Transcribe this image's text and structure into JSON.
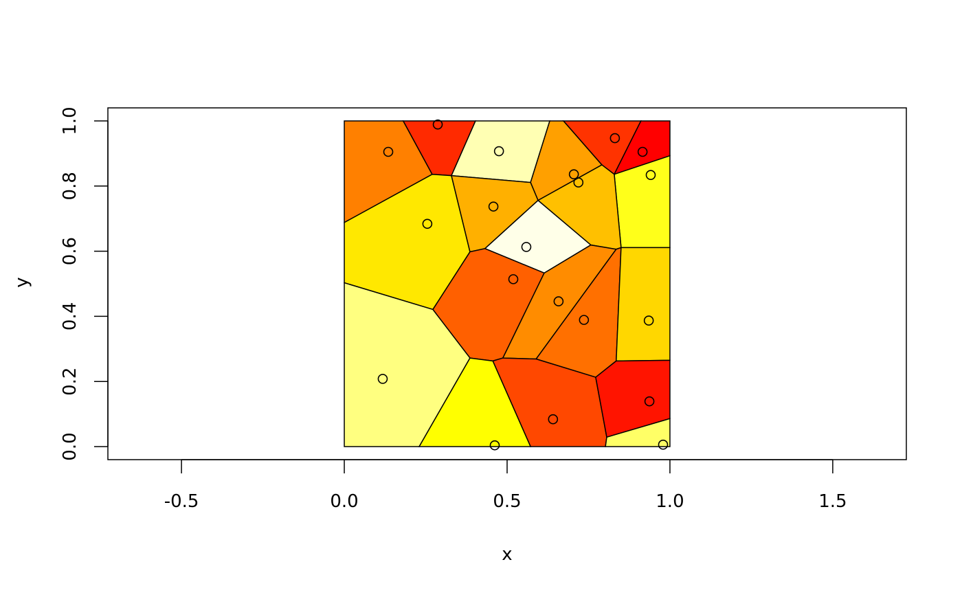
{
  "chart_data": {
    "type": "voronoi",
    "x_label": "x",
    "y_label": "y",
    "xlim": [
      -0.726,
      1.726
    ],
    "ylim": [
      -0.04,
      1.04
    ],
    "xticks": [
      -0.5,
      {
        "value": 0,
        "label": "0.0"
      },
      0.5,
      {
        "value": 1,
        "label": "1.0"
      },
      1.5
    ],
    "yticks": [
      {
        "value": 0,
        "label": "0.0"
      },
      0.2,
      0.4,
      0.6,
      0.8,
      {
        "value": 1,
        "label": "1.0"
      }
    ],
    "points": {
      "x": [
        0.135,
        0.287,
        0.475,
        0.831,
        0.916,
        0.941,
        0.705,
        0.719,
        0.255,
        0.458,
        0.559,
        0.519,
        0.658,
        0.736,
        0.935,
        0.118,
        0.641,
        0.937,
        0.462,
        0.979
      ],
      "y": [
        0.905,
        0.989,
        0.907,
        0.947,
        0.905,
        0.834,
        0.836,
        0.811,
        0.684,
        0.737,
        0.613,
        0.514,
        0.446,
        0.389,
        0.387,
        0.208,
        0.084,
        0.139,
        0.004,
        0.006
      ]
    },
    "cells": [
      {
        "color": "#FF8000",
        "x": [
          0,
          0.181,
          0.27,
          0
        ],
        "y": [
          1,
          1,
          0.836,
          0.688
        ]
      },
      {
        "color": "#FF2A00",
        "x": [
          0.181,
          0.403,
          0.329,
          0.27
        ],
        "y": [
          1,
          1,
          0.832,
          0.836
        ]
      },
      {
        "color": "#FFFFB3",
        "x": [
          0.403,
          0.631,
          0.572,
          0.329
        ],
        "y": [
          1,
          1,
          0.811,
          0.832
        ]
      },
      {
        "color": "#FF3300",
        "x": [
          0.673,
          0.911,
          0.829,
          0.791
        ],
        "y": [
          1,
          1,
          0.836,
          0.865
        ]
      },
      {
        "color": "#FF0000",
        "x": [
          0.911,
          1,
          1,
          0.829
        ],
        "y": [
          1,
          1,
          0.893,
          0.836
        ]
      },
      {
        "color": "#FFFF1A",
        "x": [
          0.829,
          1,
          1,
          0.85
        ],
        "y": [
          0.836,
          0.893,
          0.611,
          0.611
        ]
      },
      {
        "color": "#FFA000",
        "x": [
          0.631,
          0.673,
          0.791,
          0.595,
          0.572
        ],
        "y": [
          1,
          1,
          0.865,
          0.756,
          0.811
        ]
      },
      {
        "color": "#FFC000",
        "x": [
          0.595,
          0.791,
          0.829,
          0.85,
          0.835,
          0.757
        ],
        "y": [
          0.756,
          0.865,
          0.836,
          0.611,
          0.606,
          0.619
        ]
      },
      {
        "color": "#FFE800",
        "x": [
          0,
          0.27,
          0.329,
          0.386,
          0.272,
          0
        ],
        "y": [
          0.688,
          0.836,
          0.832,
          0.598,
          0.421,
          0.503
        ]
      },
      {
        "color": "#FFB000",
        "x": [
          0.329,
          0.572,
          0.595,
          0.432,
          0.386
        ],
        "y": [
          0.832,
          0.811,
          0.756,
          0.608,
          0.598
        ]
      },
      {
        "color": "#FFFFE8",
        "x": [
          0.432,
          0.595,
          0.757,
          0.614
        ],
        "y": [
          0.608,
          0.756,
          0.619,
          0.533
        ]
      },
      {
        "color": "#FF6000",
        "x": [
          0.272,
          0.386,
          0.432,
          0.614,
          0.487,
          0.456,
          0.386
        ],
        "y": [
          0.421,
          0.598,
          0.608,
          0.533,
          0.272,
          0.263,
          0.272
        ]
      },
      {
        "color": "#FF8C00",
        "x": [
          0.614,
          0.757,
          0.835,
          0.589,
          0.487
        ],
        "y": [
          0.533,
          0.619,
          0.606,
          0.269,
          0.272
        ]
      },
      {
        "color": "#FF7000",
        "x": [
          0.835,
          0.85,
          0.835,
          0.772,
          0.589
        ],
        "y": [
          0.606,
          0.611,
          0.263,
          0.213,
          0.269
        ]
      },
      {
        "color": "#FFD700",
        "x": [
          0.85,
          1,
          1,
          0.835
        ],
        "y": [
          0.611,
          0.611,
          0.265,
          0.263
        ]
      },
      {
        "color": "#FFFF80",
        "x": [
          0,
          0.272,
          0.386,
          0.23,
          0
        ],
        "y": [
          0.503,
          0.421,
          0.272,
          0,
          0
        ]
      },
      {
        "color": "#FF4800",
        "x": [
          0.456,
          0.487,
          0.589,
          0.772,
          0.806,
          0.802,
          0.572
        ],
        "y": [
          0.263,
          0.272,
          0.269,
          0.213,
          0.029,
          0,
          0
        ]
      },
      {
        "color": "#FF1400",
        "x": [
          0.772,
          0.835,
          1,
          1,
          0.806
        ],
        "y": [
          0.213,
          0.263,
          0.265,
          0.086,
          0.029
        ]
      },
      {
        "color": "#FFFF00",
        "x": [
          0.386,
          0.456,
          0.572,
          0.23
        ],
        "y": [
          0.272,
          0.263,
          0,
          0
        ]
      },
      {
        "color": "#FFFF66",
        "x": [
          0.806,
          1,
          1,
          0.802
        ],
        "y": [
          0.029,
          0.086,
          0,
          0
        ]
      }
    ]
  }
}
